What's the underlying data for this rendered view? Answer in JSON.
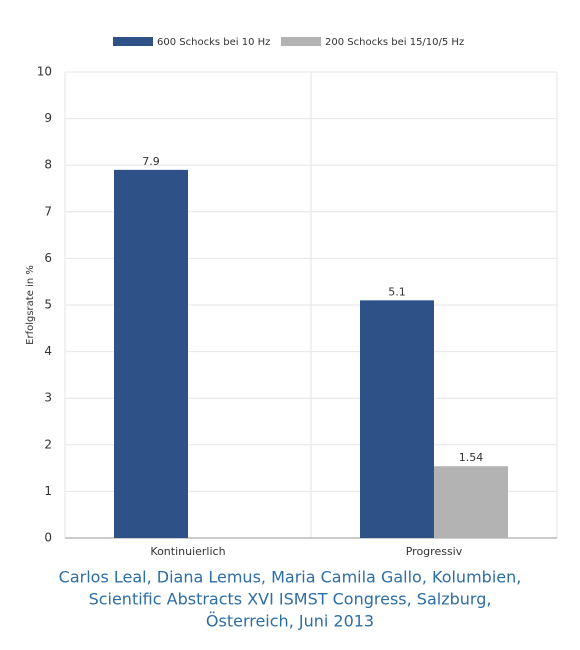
{
  "chart_data": {
    "type": "bar",
    "y_label": "Erfolgsrate in %",
    "categories": [
      "Kontinuierlich",
      "Progressiv"
    ],
    "series": [
      {
        "name": "600 Schocks bei 10 Hz",
        "color": "#2e5288",
        "values": [
          7.9,
          5.1
        ]
      },
      {
        "name": "200 Schocks bei 15/10/5 Hz",
        "color": "#b3b3b3",
        "values": [
          null,
          1.54
        ]
      }
    ],
    "ylim": [
      0,
      10
    ],
    "yticks": [
      0,
      1,
      2,
      3,
      4,
      5,
      6,
      7,
      8,
      9,
      10
    ],
    "grid": true,
    "caption": [
      "Carlos Leal, Diana Lemus, Maria Camila Gallo, Kolumbien,",
      "Scientific Abstracts XVI ISMST Congress, Salzburg,",
      "Österreich, Juni 2013"
    ]
  }
}
